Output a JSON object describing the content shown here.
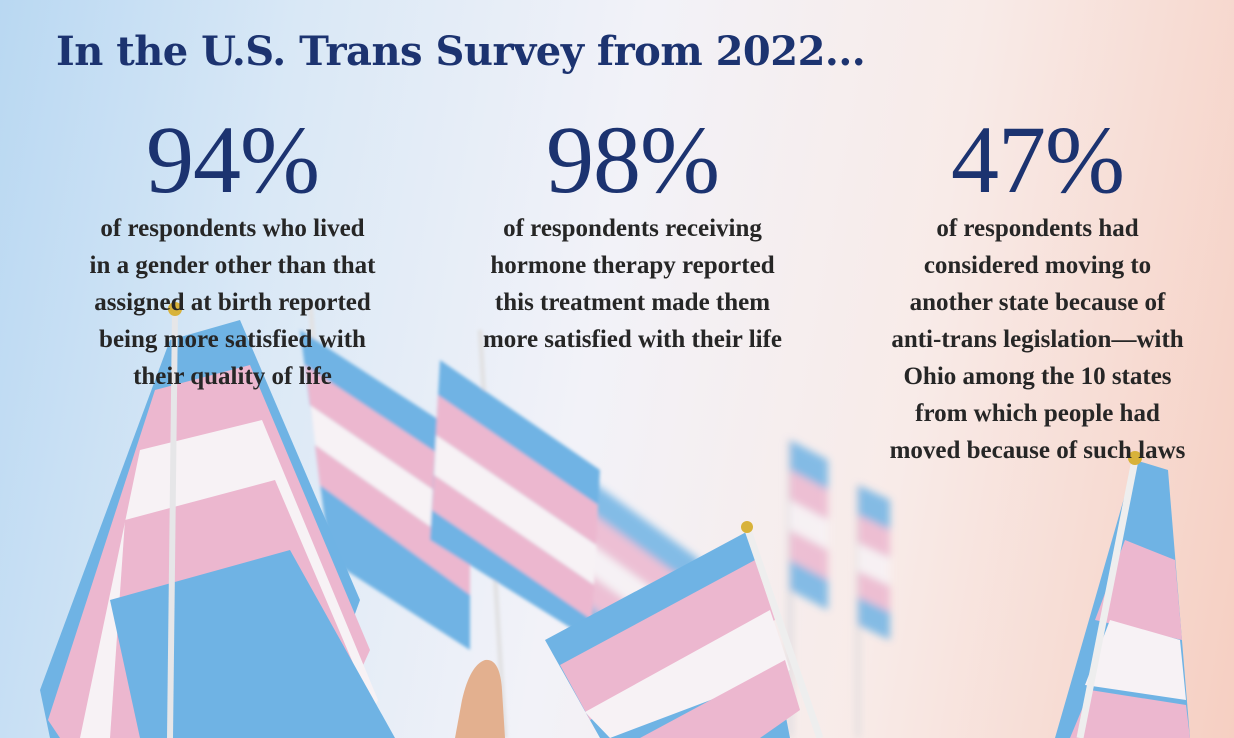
{
  "headline": "In the U.S. Trans Survey from 2022...",
  "colors": {
    "headline": "#1c3370",
    "percent": "#1c3370",
    "body_text": "#262626",
    "flag_blue": "#6fb3e4",
    "flag_pink": "#ecb7cf",
    "flag_white": "#f7f2f5"
  },
  "stats": [
    {
      "percent": "94%",
      "lines": [
        "of respondents who lived",
        "in a gender other than that",
        "assigned at birth reported",
        "being more satisfied with",
        "their quality of life"
      ]
    },
    {
      "percent": "98%",
      "lines": [
        "of respondents receiving",
        "hormone therapy reported",
        "this treatment made them",
        "more satisfied with their life"
      ]
    },
    {
      "percent": "47%",
      "lines": [
        "of respondents had",
        "considered moving to",
        "another state because of",
        "anti-trans legislation—with",
        "Ohio among the 10 states",
        "from which people had",
        "moved because of such laws"
      ]
    }
  ],
  "background": {
    "subject": "transgender-pride-flags-photo",
    "flag_stripes": [
      "flag_blue",
      "flag_pink",
      "flag_white",
      "flag_pink",
      "flag_blue"
    ]
  }
}
